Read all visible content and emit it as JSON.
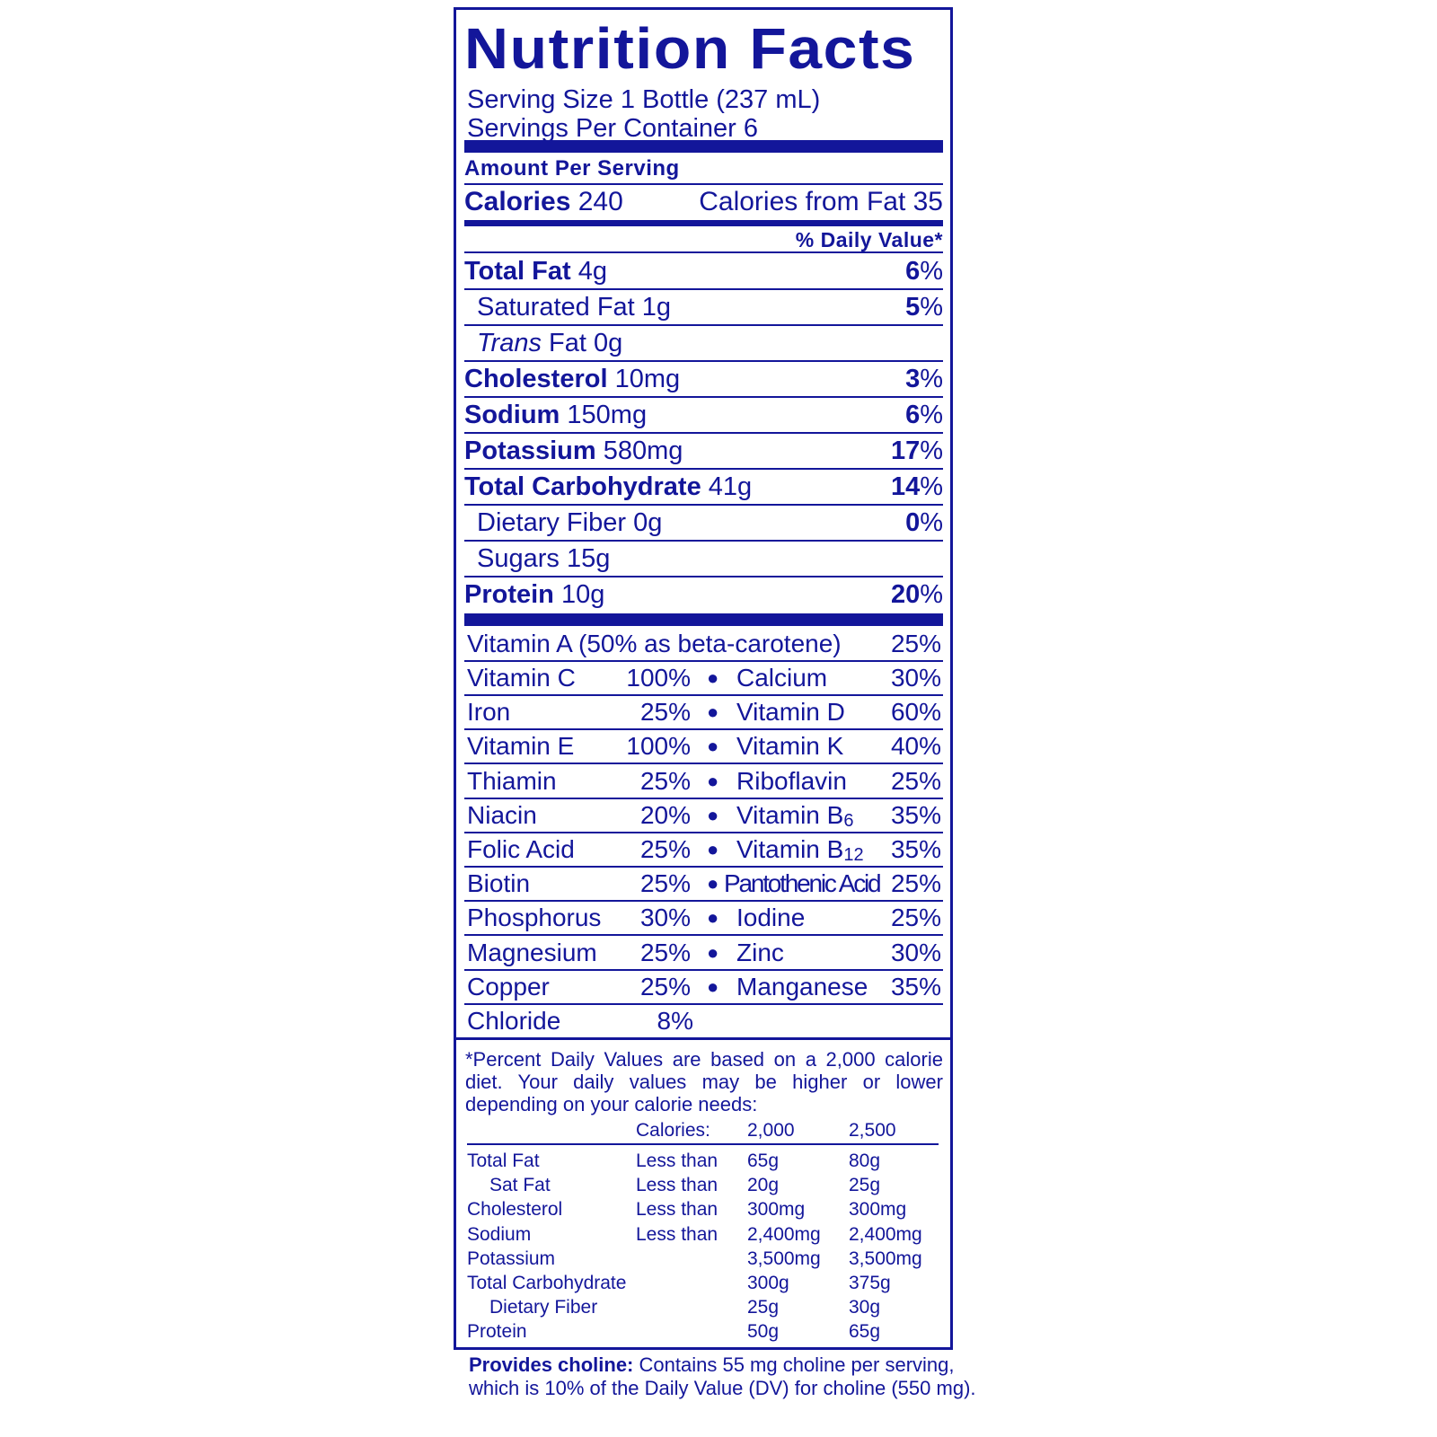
{
  "title": "Nutrition Facts",
  "serving_size": "Serving Size 1 Bottle (237 mL)",
  "servings_per_container": "Servings Per Container 6",
  "amount_per_serving": "Amount Per Serving",
  "calories": {
    "label": "Calories",
    "value": "240",
    "from_fat": "Calories from Fat 35"
  },
  "daily_value_header": "% Daily Value*",
  "nutrients": [
    {
      "name": "Total Fat",
      "amount": "4g",
      "dv_num": "6",
      "dv_pct": "%",
      "bold": true,
      "indent": false
    },
    {
      "name": "Saturated Fat",
      "amount": "1g",
      "dv_num": "5",
      "dv_pct": "%",
      "bold": false,
      "indent": true
    },
    {
      "name_italic": "Trans",
      "name": "Fat",
      "amount": "0g",
      "dv_num": "",
      "dv_pct": "",
      "bold": false,
      "indent": true
    },
    {
      "name": "Cholesterol",
      "amount": "10mg",
      "dv_num": "3",
      "dv_pct": "%",
      "bold": true,
      "indent": false
    },
    {
      "name": "Sodium",
      "amount": "150mg",
      "dv_num": "6",
      "dv_pct": "%",
      "bold": true,
      "indent": false
    },
    {
      "name": "Potassium",
      "amount": "580mg",
      "dv_num": "17",
      "dv_pct": "%",
      "bold": true,
      "indent": false
    },
    {
      "name": "Total Carbohydrate",
      "amount": "41g",
      "dv_num": "14",
      "dv_pct": "%",
      "bold": true,
      "indent": false
    },
    {
      "name": "Dietary Fiber",
      "amount": "0g",
      "dv_num": "0",
      "dv_pct": "%",
      "bold": false,
      "indent": true
    },
    {
      "name": "Sugars",
      "amount": "15g",
      "dv_num": "",
      "dv_pct": "",
      "bold": false,
      "indent": true
    },
    {
      "name": "Protein",
      "amount": "10g",
      "dv_num": "20",
      "dv_pct": "%",
      "bold": true,
      "indent": false
    }
  ],
  "vitamin_a": {
    "label": "Vitamin A (50% as beta-carotene)",
    "value": "25%"
  },
  "vitamins": [
    {
      "l1": "Vitamin C",
      "v1": "100%",
      "l2": "Calcium",
      "v2": "30%"
    },
    {
      "l1": "Iron",
      "v1": "25%",
      "l2": "Vitamin D",
      "v2": "60%"
    },
    {
      "l1": "Vitamin E",
      "v1": "100%",
      "l2": "Vitamin K",
      "v2": "40%"
    },
    {
      "l1": "Thiamin",
      "v1": "25%",
      "l2": "Riboflavin",
      "v2": "25%"
    },
    {
      "l1": "Niacin",
      "v1": "20%",
      "l2": "Vitamin B",
      "l2_sub": "6",
      "v2": "35%"
    },
    {
      "l1": "Folic Acid",
      "v1": "25%",
      "l2": "Vitamin B",
      "l2_sub": "12",
      "v2": "35%"
    },
    {
      "l1": "Biotin",
      "v1": "25%",
      "l2": "Pantothenic Acid",
      "v2": "25%"
    },
    {
      "l1": "Phosphorus",
      "v1": "30%",
      "l2": "Iodine",
      "v2": "25%"
    },
    {
      "l1": "Magnesium",
      "v1": "25%",
      "l2": "Zinc",
      "v2": "30%"
    },
    {
      "l1": "Copper",
      "v1": "25%",
      "l2": "Manganese",
      "v2": "35%"
    },
    {
      "l1": "Chloride",
      "v1": "8%"
    }
  ],
  "bullet": "●",
  "footnote": {
    "line1": "*Percent Daily Values are based on a 2,000 calorie",
    "line2": "diet. Your daily values may be higher or lower",
    "line3": "depending on your calorie needs:",
    "header": [
      "",
      "Calories:",
      "2,000",
      "2,500"
    ],
    "rows": [
      [
        "Total Fat",
        "Less than",
        "65g",
        "80g"
      ],
      [
        "Sat Fat",
        "Less than",
        "20g",
        "25g"
      ],
      [
        "Cholesterol",
        "Less than",
        "300mg",
        "300mg"
      ],
      [
        "Sodium",
        "Less than",
        "2,400mg",
        "2,400mg"
      ],
      [
        "Potassium",
        "",
        "3,500mg",
        "3,500mg"
      ],
      [
        "Total Carbohydrate",
        "",
        "300g",
        "375g"
      ],
      [
        "Dietary Fiber",
        "",
        "25g",
        "30g"
      ],
      [
        "Protein",
        "",
        "50g",
        "65g"
      ]
    ]
  },
  "choline": {
    "label": "Provides choline:",
    "text1": "Contains 55 mg choline per serving,",
    "text2": "which is 10% of the Daily Value (DV) for choline (550 mg)."
  },
  "colors": {
    "ink": "#13169a",
    "background": "#ffffff"
  }
}
